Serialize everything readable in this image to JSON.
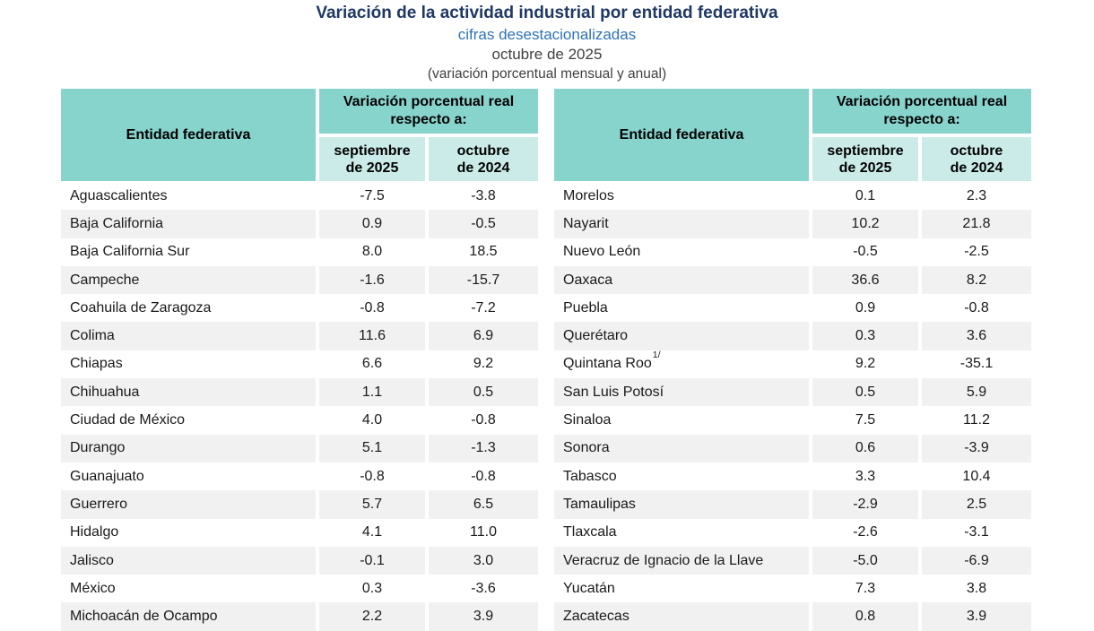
{
  "page": {
    "title": "Variación de la actividad industrial por entidad federativa",
    "subtitle": "cifras desestacionalizadas",
    "period": "octubre de 2025",
    "note": "(variación porcentual mensual y anual)"
  },
  "table_header": {
    "entity": "Entidad federativa",
    "group": "Variación porcentual real respecto a:",
    "col_month_lines": [
      "septiembre",
      "de 2025"
    ],
    "col_year_lines": [
      "octubre",
      "de 2024"
    ]
  },
  "colors": {
    "title_navy": "#1F3864",
    "subtitle_blue": "#2E74B5",
    "body_gray": "#404040",
    "header_teal": "#87D4CD",
    "header_teal_light": "#CBEBE8",
    "row_stripe": "#F1F1F1"
  },
  "tables": [
    {
      "rows": [
        [
          "Aguascalientes",
          "-7.5",
          "-3.8"
        ],
        [
          "Baja California",
          "0.9",
          "-0.5"
        ],
        [
          "Baja California Sur",
          "8.0",
          "18.5"
        ],
        [
          "Campeche",
          "-1.6",
          "-15.7"
        ],
        [
          "Coahuila de Zaragoza",
          "-0.8",
          "-7.2"
        ],
        [
          "Colima",
          "11.6",
          "6.9"
        ],
        [
          "Chiapas",
          "6.6",
          "9.2"
        ],
        [
          "Chihuahua",
          "1.1",
          "0.5"
        ],
        [
          "Ciudad de México",
          "4.0",
          "-0.8"
        ],
        [
          "Durango",
          "5.1",
          "-1.3"
        ],
        [
          "Guanajuato",
          "-0.8",
          "-0.8"
        ],
        [
          "Guerrero",
          "5.7",
          "6.5"
        ],
        [
          "Hidalgo",
          "4.1",
          "11.0"
        ],
        [
          "Jalisco",
          "-0.1",
          "3.0"
        ],
        [
          "México",
          "0.3",
          "-3.6"
        ],
        [
          "Michoacán de Ocampo",
          "2.2",
          "3.9"
        ]
      ]
    },
    {
      "rows": [
        [
          "Morelos",
          "0.1",
          "2.3"
        ],
        [
          "Nayarit",
          "10.2",
          "21.8"
        ],
        [
          "Nuevo León",
          "-0.5",
          "-2.5"
        ],
        [
          "Oaxaca",
          "36.6",
          "8.2"
        ],
        [
          "Puebla",
          "0.9",
          "-0.8"
        ],
        [
          "Querétaro",
          "0.3",
          "3.6"
        ],
        [
          "Quintana Roo",
          "9.2",
          "-35.1",
          "1/"
        ],
        [
          "San Luis Potosí",
          "0.5",
          "5.9"
        ],
        [
          "Sinaloa",
          "7.5",
          "11.2"
        ],
        [
          "Sonora",
          "0.6",
          "-3.9"
        ],
        [
          "Tabasco",
          "3.3",
          "10.4"
        ],
        [
          "Tamaulipas",
          "-2.9",
          "2.5"
        ],
        [
          "Tlaxcala",
          "-2.6",
          "-3.1"
        ],
        [
          "Veracruz de Ignacio de la Llave",
          "-5.0",
          "-6.9"
        ],
        [
          "Yucatán",
          "7.3",
          "3.8"
        ],
        [
          "Zacatecas",
          "0.8",
          "3.9"
        ]
      ]
    }
  ]
}
